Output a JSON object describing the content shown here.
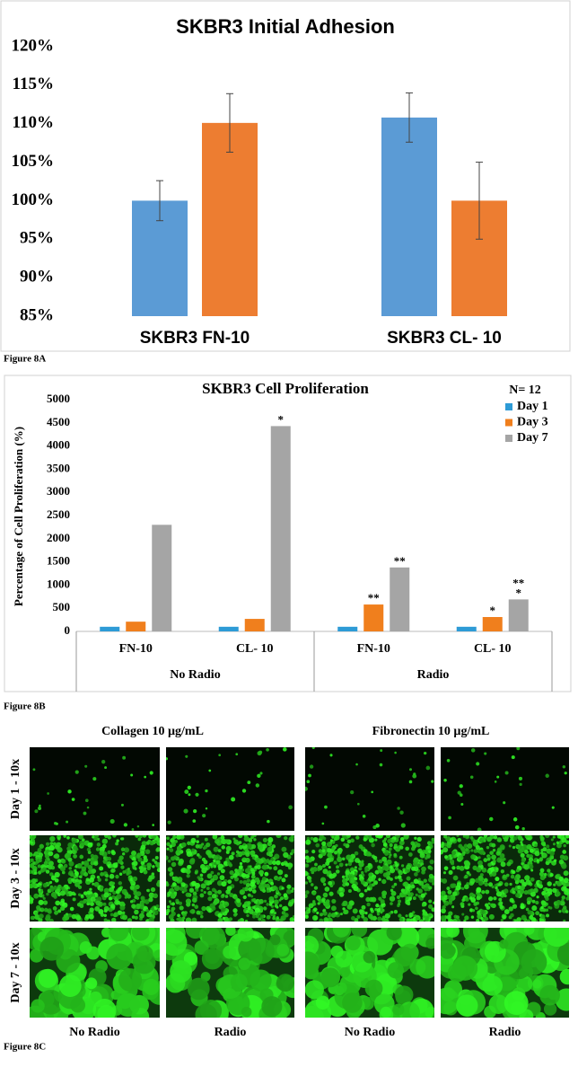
{
  "chart_data": [
    {
      "type": "bar",
      "title": "SKBR3  Initial Adhesion",
      "categories": [
        "SKBR3 FN-10",
        "SKBR3 CL- 10"
      ],
      "series": [
        {
          "color": "#5b9bd5",
          "values": [
            100,
            110.8
          ],
          "errors": [
            2.6,
            3.2
          ]
        },
        {
          "color": "#ed7d31",
          "values": [
            110.1,
            100
          ],
          "errors": [
            3.8,
            5
          ]
        }
      ],
      "ylim": [
        85,
        120
      ],
      "yticks": [
        {
          "value": 85,
          "label": "85%"
        },
        {
          "value": 90,
          "label": "90%"
        },
        {
          "value": 95,
          "label": "95%"
        },
        {
          "value": 100,
          "label": "100%"
        },
        {
          "value": 105,
          "label": "105%"
        },
        {
          "value": 110,
          "label": "110%"
        },
        {
          "value": 115,
          "label": "115%"
        },
        {
          "value": 120,
          "label": "120%"
        }
      ],
      "grid": false
    },
    {
      "type": "bar",
      "title": "SKBR3 Cell Proliferation",
      "y_label": "Percentage of Cell Proliferation (%)",
      "groups": [
        {
          "name": "No Radio",
          "categories": [
            "FN-10",
            "CL- 10"
          ]
        },
        {
          "name": "Radio",
          "categories": [
            "FN-10",
            "CL- 10"
          ]
        }
      ],
      "legend_title": "N= 12",
      "legend": "top-right",
      "series": [
        {
          "name": "Day 1",
          "color": "#2e9bd6",
          "values": [
            100,
            100,
            100,
            100
          ],
          "significance": [
            null,
            null,
            null,
            null
          ]
        },
        {
          "name": "Day 3",
          "color": "#f07f1d",
          "values": [
            210,
            270,
            580,
            310
          ],
          "significance": [
            null,
            null,
            [
              "**"
            ],
            [
              "*"
            ]
          ]
        },
        {
          "name": "Day 7",
          "color": "#a5a5a5",
          "values": [
            2300,
            4430,
            1380,
            690
          ],
          "significance": [
            null,
            [
              "*"
            ],
            [
              "**"
            ],
            [
              "**",
              "*"
            ]
          ]
        }
      ],
      "ylim": [
        0,
        5000
      ],
      "yticks": [
        0,
        500,
        1000,
        1500,
        2000,
        2500,
        3000,
        3500,
        4000,
        4500,
        5000
      ],
      "grid": false
    }
  ],
  "figure_labels": [
    "Figure  8A",
    "Figure  8B",
    "Figure  8C"
  ],
  "micrographs": {
    "columns": [
      "Collagen 10 µg/mL",
      "Fibronectin 10 µg/mL"
    ],
    "rows": [
      "Day 1 - 10x",
      "Day 3 - 10x",
      "Day 7 - 10x"
    ],
    "conditions": [
      "No Radio",
      "Radio",
      "No Radio",
      "Radio"
    ]
  }
}
